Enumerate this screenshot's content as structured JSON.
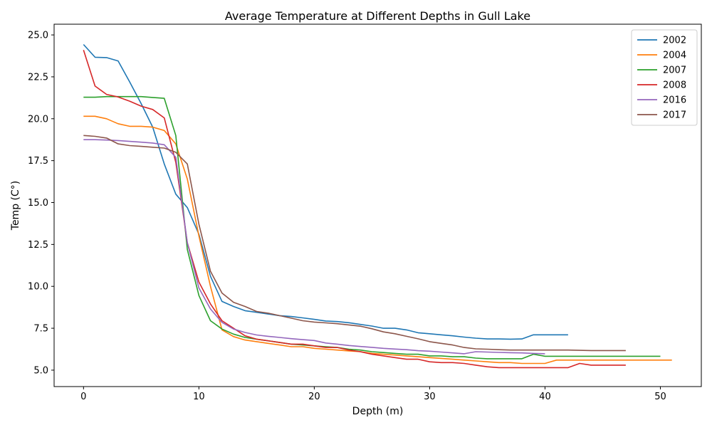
{
  "chart_data": {
    "type": "line",
    "title": "Average Temperature at Different Depths in Gull Lake",
    "xlabel": "Depth (m)",
    "ylabel": "Temp (C°)",
    "xlim": [
      -2.55,
      53.55
    ],
    "ylim": [
      4.02,
      25.64
    ],
    "xticks": [
      0,
      10,
      20,
      30,
      40,
      50
    ],
    "xtick_labels": [
      "0",
      "10",
      "20",
      "30",
      "40",
      "50"
    ],
    "yticks": [
      5.0,
      7.5,
      10.0,
      12.5,
      15.0,
      17.5,
      20.0,
      22.5,
      25.0
    ],
    "ytick_labels": [
      "5.0",
      "7.5",
      "10.0",
      "12.5",
      "15.0",
      "17.5",
      "20.0",
      "22.5",
      "25.0"
    ],
    "grid": false,
    "legend_position": "top-right",
    "series": [
      {
        "name": "2002",
        "color": "#1f77b4",
        "x": [
          0,
          1,
          2,
          3,
          4,
          5,
          6,
          7,
          8,
          9,
          10,
          11,
          12,
          13,
          14,
          15,
          16,
          17,
          18,
          19,
          20,
          21,
          22,
          23,
          24,
          25,
          26,
          27,
          28,
          29,
          30,
          31,
          32,
          33,
          34,
          35,
          36,
          37,
          38,
          39,
          40,
          41,
          42
        ],
        "y": [
          24.43,
          23.67,
          23.65,
          23.45,
          22.2,
          20.9,
          19.5,
          17.3,
          15.5,
          14.7,
          13.1,
          10.6,
          9.1,
          8.8,
          8.55,
          8.45,
          8.35,
          8.25,
          8.2,
          8.12,
          8.03,
          7.93,
          7.9,
          7.83,
          7.73,
          7.63,
          7.5,
          7.5,
          7.4,
          7.23,
          7.17,
          7.11,
          7.05,
          6.97,
          6.91,
          6.86,
          6.86,
          6.85,
          6.86,
          7.11,
          7.11,
          7.11,
          7.11
        ]
      },
      {
        "name": "2004",
        "color": "#ff7f0e",
        "x": [
          0,
          1,
          2,
          3,
          4,
          5,
          6,
          7,
          8,
          9,
          10,
          11,
          12,
          13,
          14,
          15,
          16,
          17,
          18,
          19,
          20,
          21,
          22,
          23,
          24,
          25,
          26,
          27,
          28,
          29,
          30,
          31,
          32,
          33,
          34,
          35,
          36,
          37,
          38,
          39,
          40,
          41,
          42,
          43,
          44,
          45,
          46,
          47,
          48,
          49,
          50,
          51
        ],
        "y": [
          20.15,
          20.15,
          20.0,
          19.7,
          19.55,
          19.55,
          19.5,
          19.3,
          18.5,
          16.4,
          13.0,
          10.0,
          7.4,
          7.0,
          6.8,
          6.7,
          6.6,
          6.5,
          6.4,
          6.4,
          6.3,
          6.25,
          6.2,
          6.15,
          6.1,
          6.0,
          5.95,
          5.9,
          5.85,
          5.8,
          5.75,
          5.7,
          5.65,
          5.6,
          5.55,
          5.5,
          5.45,
          5.45,
          5.4,
          5.4,
          5.4,
          5.6,
          5.6,
          5.6,
          5.6,
          5.6,
          5.6,
          5.6,
          5.6,
          5.6,
          5.6,
          5.6
        ]
      },
      {
        "name": "2007",
        "color": "#2ca02c",
        "x": [
          0,
          1,
          2,
          3,
          4,
          5,
          6,
          7,
          8,
          9,
          10,
          11,
          12,
          13,
          14,
          15,
          16,
          17,
          18,
          19,
          20,
          21,
          22,
          23,
          24,
          25,
          26,
          27,
          28,
          29,
          30,
          31,
          32,
          33,
          34,
          35,
          36,
          37,
          38,
          39,
          40,
          41,
          42,
          43,
          44,
          45,
          46,
          47,
          48,
          49,
          50
        ],
        "y": [
          21.28,
          21.28,
          21.32,
          21.32,
          21.32,
          21.32,
          21.27,
          21.22,
          19.0,
          12.2,
          9.45,
          7.95,
          7.45,
          7.15,
          6.95,
          6.85,
          6.75,
          6.65,
          6.55,
          6.5,
          6.45,
          6.4,
          6.35,
          6.25,
          6.2,
          6.1,
          6.05,
          6.0,
          5.95,
          5.95,
          5.85,
          5.85,
          5.8,
          5.8,
          5.72,
          5.68,
          5.68,
          5.68,
          5.68,
          5.95,
          5.83,
          5.83,
          5.83,
          5.83,
          5.83,
          5.83,
          5.83,
          5.83,
          5.83,
          5.83,
          5.83
        ]
      },
      {
        "name": "2008",
        "color": "#d62728",
        "x": [
          0,
          1,
          2,
          3,
          4,
          5,
          6,
          7,
          8,
          9,
          10,
          11,
          12,
          13,
          14,
          15,
          16,
          17,
          18,
          19,
          20,
          21,
          22,
          23,
          24,
          25,
          26,
          27,
          28,
          29,
          30,
          31,
          32,
          33,
          34,
          35,
          36,
          37,
          38,
          39,
          40,
          41,
          42,
          43,
          44,
          45,
          46,
          47
        ],
        "y": [
          24.1,
          21.95,
          21.45,
          21.3,
          21.05,
          20.75,
          20.55,
          20.05,
          17.4,
          12.6,
          10.25,
          8.95,
          7.95,
          7.5,
          7.05,
          6.85,
          6.75,
          6.65,
          6.55,
          6.55,
          6.45,
          6.35,
          6.35,
          6.2,
          6.1,
          5.95,
          5.85,
          5.75,
          5.65,
          5.65,
          5.5,
          5.45,
          5.45,
          5.4,
          5.3,
          5.2,
          5.15,
          5.15,
          5.15,
          5.15,
          5.15,
          5.15,
          5.15,
          5.4,
          5.3,
          5.3,
          5.3,
          5.3
        ]
      },
      {
        "name": "2016",
        "color": "#9467bd",
        "x": [
          0,
          1,
          2,
          3,
          4,
          5,
          6,
          7,
          8,
          9,
          10,
          11,
          12,
          13,
          14,
          15,
          16,
          17,
          18,
          19,
          20,
          21,
          22,
          23,
          24,
          25,
          26,
          27,
          28,
          29,
          30,
          31,
          32,
          33,
          34,
          35,
          36,
          37,
          38,
          39,
          40
        ],
        "y": [
          18.75,
          18.75,
          18.73,
          18.7,
          18.65,
          18.6,
          18.55,
          18.45,
          17.7,
          12.6,
          9.9,
          8.65,
          7.85,
          7.45,
          7.25,
          7.1,
          7.02,
          6.95,
          6.88,
          6.82,
          6.77,
          6.62,
          6.55,
          6.47,
          6.41,
          6.36,
          6.3,
          6.26,
          6.22,
          6.16,
          6.13,
          6.08,
          6.03,
          5.98,
          6.1,
          6.08,
          6.06,
          6.04,
          6.03,
          6.0,
          5.98
        ]
      },
      {
        "name": "2017",
        "color": "#8c564b",
        "x": [
          0,
          1,
          2,
          3,
          4,
          5,
          6,
          7,
          8,
          9,
          10,
          11,
          12,
          13,
          14,
          15,
          16,
          17,
          18,
          19,
          20,
          21,
          22,
          23,
          24,
          25,
          26,
          27,
          28,
          29,
          30,
          31,
          32,
          33,
          34,
          35,
          36,
          37,
          38,
          39,
          40,
          41,
          42,
          43,
          44,
          45,
          46,
          47
        ],
        "y": [
          19.0,
          18.95,
          18.85,
          18.5,
          18.4,
          18.35,
          18.3,
          18.25,
          18.0,
          17.3,
          13.7,
          10.9,
          9.6,
          9.05,
          8.8,
          8.5,
          8.4,
          8.25,
          8.1,
          7.95,
          7.87,
          7.82,
          7.77,
          7.7,
          7.62,
          7.47,
          7.28,
          7.17,
          7.02,
          6.87,
          6.7,
          6.6,
          6.5,
          6.35,
          6.27,
          6.25,
          6.22,
          6.2,
          6.2,
          6.2,
          6.2,
          6.2,
          6.2,
          6.18,
          6.17,
          6.17,
          6.17,
          6.17
        ]
      }
    ]
  }
}
